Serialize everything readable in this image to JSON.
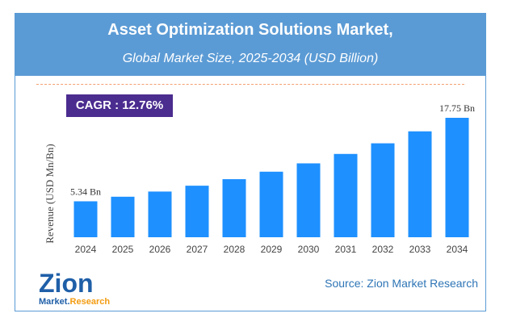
{
  "chart_data": {
    "type": "bar",
    "title": "Asset Optimization Solutions Market,",
    "subtitle": "Global Market Size, 2025-2034 (USD Billion)",
    "ylabel": "Revenue (USD Mn/Bn)",
    "xlabel": "",
    "categories": [
      "2024",
      "2025",
      "2026",
      "2027",
      "2028",
      "2029",
      "2030",
      "2031",
      "2032",
      "2033",
      "2034"
    ],
    "values": [
      5.34,
      6.02,
      6.79,
      7.66,
      8.63,
      9.74,
      10.98,
      12.38,
      13.96,
      15.74,
      17.75
    ],
    "data_labels": {
      "first": "5.34 Bn",
      "last": "17.75 Bn"
    },
    "ylim": [
      0,
      17.75
    ],
    "grid": false,
    "bar_color": "#1e90ff"
  },
  "cagr": "CAGR :  12.76%",
  "source": "Source: Zion Market Research",
  "logo": {
    "brand": "Zion",
    "sub1": "Market.",
    "sub2": "Research"
  }
}
